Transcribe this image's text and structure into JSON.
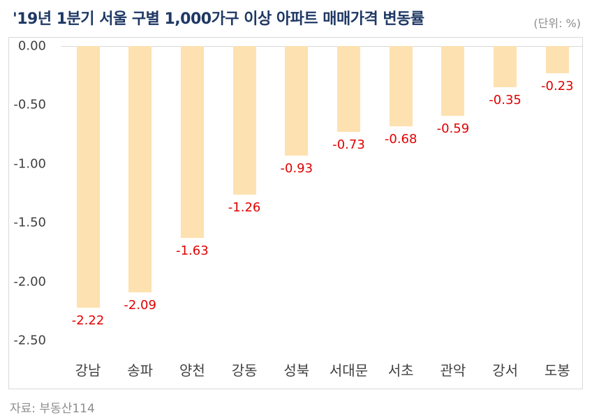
{
  "header": {
    "title": "'19년 1분기 서울 구별 1,000가구 이상 아파트 매매가격 변동률",
    "unit": "(단위: %)"
  },
  "footer": {
    "source": "자료: 부동산114"
  },
  "colors": {
    "bar": "#fde1b0",
    "data_label": "#e00000",
    "title": "#1f3864",
    "axis_text": "#404040"
  },
  "chart_data": {
    "type": "bar",
    "title": "'19년 1분기 서울 구별 1,000가구 이상 아파트 매매가격 변동률",
    "unit": "%",
    "xlabel": "",
    "ylabel": "",
    "categories": [
      "강남",
      "송파",
      "양천",
      "강동",
      "성북",
      "서대문",
      "서초",
      "관악",
      "강서",
      "도봉"
    ],
    "values": [
      -2.22,
      -2.09,
      -1.63,
      -1.26,
      -0.93,
      -0.73,
      -0.68,
      -0.59,
      -0.35,
      -0.23
    ],
    "value_labels": [
      "-2.22",
      "-2.09",
      "-1.63",
      "-1.26",
      "-0.93",
      "-0.73",
      "-0.68",
      "-0.59",
      "-0.35",
      "-0.23"
    ],
    "ylim": [
      -2.5,
      0
    ],
    "yticks": [
      "0.00",
      "-0.50",
      "-1.00",
      "-1.50",
      "-2.00",
      "-2.50"
    ],
    "grid": false,
    "legend": "none",
    "source": "자료: 부동산114"
  }
}
